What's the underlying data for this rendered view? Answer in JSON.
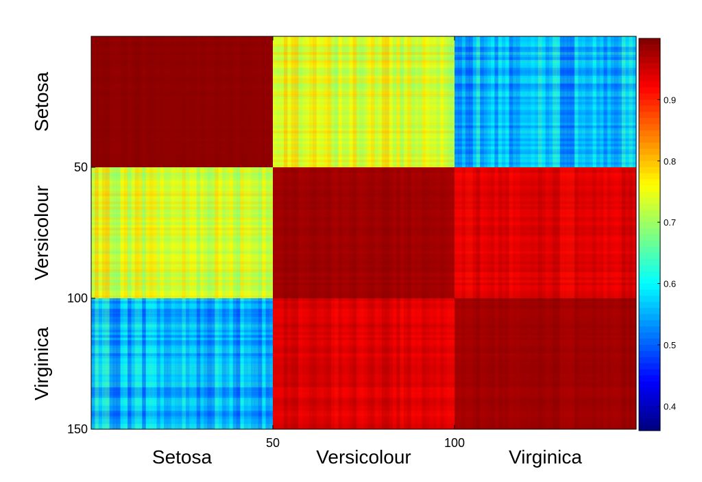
{
  "chart_data": {
    "type": "heatmap",
    "title": "",
    "n": 150,
    "blocks": [
      "Setosa",
      "Versicolour",
      "Virginica"
    ],
    "block_size": 50,
    "y_ticks": [
      {
        "value": 50,
        "label": "50"
      },
      {
        "value": 100,
        "label": "100"
      },
      {
        "value": 150,
        "label": "150"
      }
    ],
    "x_ticks": [
      {
        "value": 50,
        "label": "50"
      },
      {
        "value": 100,
        "label": "100"
      }
    ],
    "x_class_labels": [
      "Setosa",
      "Versicolour",
      "Virginica"
    ],
    "y_class_labels": [
      "Setosa",
      "Versicolour",
      "Virginica"
    ],
    "block_mean_similarity": [
      [
        0.99,
        0.74,
        0.56
      ],
      [
        0.74,
        0.98,
        0.94
      ],
      [
        0.56,
        0.94,
        0.98
      ]
    ],
    "colorbar": {
      "colormap": "jet",
      "min": 0.36,
      "max": 1.0,
      "ticks": [
        {
          "value": 0.4,
          "label": "0.4"
        },
        {
          "value": 0.5,
          "label": "0.5"
        },
        {
          "value": 0.6,
          "label": "0.6"
        },
        {
          "value": 0.7,
          "label": "0.7"
        },
        {
          "value": 0.8,
          "label": "0.8"
        },
        {
          "value": 0.9,
          "label": "0.9"
        }
      ]
    }
  }
}
